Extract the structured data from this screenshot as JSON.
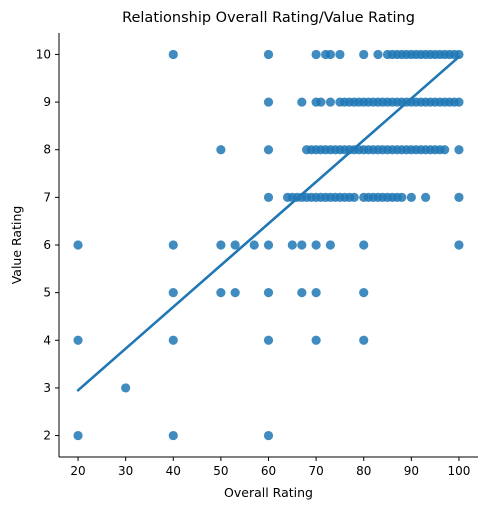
{
  "chart_data": {
    "type": "scatter",
    "title": "Relationship Overall Rating/Value Rating",
    "xlabel": "Overall Rating",
    "ylabel": "Value Rating",
    "xlim": [
      16,
      104
    ],
    "ylim": [
      1.55,
      10.45
    ],
    "xticks": [
      20,
      30,
      40,
      50,
      60,
      70,
      80,
      90,
      100
    ],
    "yticks": [
      2,
      3,
      4,
      5,
      6,
      7,
      8,
      9,
      10
    ],
    "grid": false,
    "legend": "none",
    "colors": {
      "points": "#1f77b4",
      "line": "#1f77b4",
      "axes": "#000000"
    },
    "series": [
      {
        "kind": "points",
        "points": [
          [
            20,
            2
          ],
          [
            40,
            2
          ],
          [
            60,
            2
          ],
          [
            30,
            3
          ],
          [
            20,
            4
          ],
          [
            40,
            4
          ],
          [
            60,
            4
          ],
          [
            70,
            4
          ],
          [
            80,
            4
          ],
          [
            40,
            5
          ],
          [
            50,
            5
          ],
          [
            53,
            5
          ],
          [
            60,
            5
          ],
          [
            67,
            5
          ],
          [
            70,
            5
          ],
          [
            80,
            5
          ],
          [
            20,
            6
          ],
          [
            40,
            6
          ],
          [
            50,
            6
          ],
          [
            53,
            6
          ],
          [
            57,
            6
          ],
          [
            60,
            6
          ],
          [
            65,
            6
          ],
          [
            67,
            6
          ],
          [
            70,
            6
          ],
          [
            73,
            6
          ],
          [
            80,
            6
          ],
          [
            100,
            6
          ],
          [
            60,
            7
          ],
          [
            64,
            7
          ],
          [
            65,
            7
          ],
          [
            66,
            7
          ],
          [
            67,
            7
          ],
          [
            68,
            7
          ],
          [
            69,
            7
          ],
          [
            70,
            7
          ],
          [
            71,
            7
          ],
          [
            72,
            7
          ],
          [
            73,
            7
          ],
          [
            74,
            7
          ],
          [
            75,
            7
          ],
          [
            76,
            7
          ],
          [
            77,
            7
          ],
          [
            78,
            7
          ],
          [
            80,
            7
          ],
          [
            81,
            7
          ],
          [
            82,
            7
          ],
          [
            83,
            7
          ],
          [
            84,
            7
          ],
          [
            85,
            7
          ],
          [
            86,
            7
          ],
          [
            87,
            7
          ],
          [
            88,
            7
          ],
          [
            90,
            7
          ],
          [
            93,
            7
          ],
          [
            100,
            7
          ],
          [
            50,
            8
          ],
          [
            60,
            8
          ],
          [
            68,
            8
          ],
          [
            69,
            8
          ],
          [
            70,
            8
          ],
          [
            71,
            8
          ],
          [
            72,
            8
          ],
          [
            73,
            8
          ],
          [
            74,
            8
          ],
          [
            75,
            8
          ],
          [
            76,
            8
          ],
          [
            77,
            8
          ],
          [
            78,
            8
          ],
          [
            79,
            8
          ],
          [
            80,
            8
          ],
          [
            81,
            8
          ],
          [
            82,
            8
          ],
          [
            83,
            8
          ],
          [
            84,
            8
          ],
          [
            85,
            8
          ],
          [
            86,
            8
          ],
          [
            87,
            8
          ],
          [
            88,
            8
          ],
          [
            89,
            8
          ],
          [
            90,
            8
          ],
          [
            91,
            8
          ],
          [
            92,
            8
          ],
          [
            93,
            8
          ],
          [
            94,
            8
          ],
          [
            95,
            8
          ],
          [
            96,
            8
          ],
          [
            97,
            8
          ],
          [
            100,
            8
          ],
          [
            60,
            9
          ],
          [
            67,
            9
          ],
          [
            70,
            9
          ],
          [
            71,
            9
          ],
          [
            73,
            9
          ],
          [
            75,
            9
          ],
          [
            76,
            9
          ],
          [
            77,
            9
          ],
          [
            78,
            9
          ],
          [
            79,
            9
          ],
          [
            80,
            9
          ],
          [
            81,
            9
          ],
          [
            82,
            9
          ],
          [
            83,
            9
          ],
          [
            84,
            9
          ],
          [
            85,
            9
          ],
          [
            86,
            9
          ],
          [
            87,
            9
          ],
          [
            88,
            9
          ],
          [
            89,
            9
          ],
          [
            90,
            9
          ],
          [
            91,
            9
          ],
          [
            92,
            9
          ],
          [
            93,
            9
          ],
          [
            94,
            9
          ],
          [
            95,
            9
          ],
          [
            96,
            9
          ],
          [
            97,
            9
          ],
          [
            98,
            9
          ],
          [
            99,
            9
          ],
          [
            100,
            9
          ],
          [
            40,
            10
          ],
          [
            60,
            10
          ],
          [
            70,
            10
          ],
          [
            72,
            10
          ],
          [
            73,
            10
          ],
          [
            75,
            10
          ],
          [
            80,
            10
          ],
          [
            83,
            10
          ],
          [
            85,
            10
          ],
          [
            86,
            10
          ],
          [
            87,
            10
          ],
          [
            88,
            10
          ],
          [
            89,
            10
          ],
          [
            90,
            10
          ],
          [
            91,
            10
          ],
          [
            92,
            10
          ],
          [
            93,
            10
          ],
          [
            94,
            10
          ],
          [
            95,
            10
          ],
          [
            96,
            10
          ],
          [
            97,
            10
          ],
          [
            98,
            10
          ],
          [
            99,
            10
          ],
          [
            100,
            10
          ]
        ]
      },
      {
        "kind": "regression-line",
        "line": [
          [
            20,
            2.95
          ],
          [
            100,
            9.95
          ]
        ]
      }
    ]
  }
}
